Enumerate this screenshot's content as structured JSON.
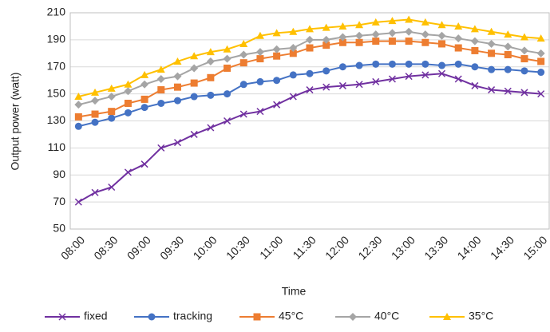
{
  "chart_data": {
    "type": "line",
    "x_label": "Time",
    "y_label": "Output  power (watt)",
    "categories": [
      "08:00",
      null,
      "08:30",
      null,
      "09:00",
      null,
      "09:30",
      null,
      "10:00",
      null,
      "10:30",
      null,
      "11:00",
      null,
      "11:30",
      null,
      "12:00",
      null,
      "12:30",
      null,
      "13:00",
      null,
      "13:30",
      null,
      "14:00",
      null,
      "14:30",
      null,
      "15:00"
    ],
    "ylim": [
      50,
      210
    ],
    "yticks": [
      50,
      70,
      90,
      110,
      130,
      150,
      170,
      190,
      210
    ],
    "grid": true,
    "series": [
      {
        "name": "fixed",
        "color": "#7030a0",
        "marker": "x",
        "values": [
          70,
          77,
          81,
          92,
          98,
          110,
          114,
          120,
          125,
          130,
          135,
          137,
          142,
          148,
          153,
          155,
          156,
          157,
          159,
          161,
          163,
          164,
          165,
          161,
          156,
          153,
          152,
          151,
          150
        ]
      },
      {
        "name": "tracking",
        "color": "#4472c4",
        "marker": "circle",
        "values": [
          126,
          129,
          132,
          136,
          140,
          143,
          145,
          148,
          149,
          150,
          157,
          159,
          160,
          164,
          165,
          167,
          170,
          171,
          172,
          172,
          172,
          172,
          171,
          172,
          170,
          168,
          168,
          167,
          166
        ]
      },
      {
        "name": "45°C",
        "color": "#ed7d31",
        "marker": "square",
        "values": [
          133,
          135,
          137,
          143,
          146,
          153,
          155,
          158,
          162,
          169,
          173,
          176,
          178,
          180,
          184,
          186,
          188,
          188,
          189,
          189,
          189,
          188,
          187,
          184,
          182,
          180,
          179,
          176,
          174
        ]
      },
      {
        "name": "40°C",
        "color": "#a5a5a5",
        "marker": "diamond",
        "values": [
          142,
          145,
          148,
          152,
          157,
          161,
          163,
          169,
          174,
          176,
          179,
          181,
          183,
          184,
          190,
          190,
          192,
          193,
          194,
          195,
          196,
          194,
          193,
          191,
          189,
          187,
          185,
          182,
          180
        ]
      },
      {
        "name": "35°C",
        "color": "#ffc000",
        "marker": "triangle",
        "values": [
          148,
          151,
          154,
          157,
          164,
          168,
          174,
          178,
          181,
          183,
          187,
          193,
          195,
          196,
          198,
          199,
          200,
          201,
          203,
          204,
          205,
          203,
          201,
          200,
          198,
          196,
          194,
          192,
          191
        ]
      }
    ]
  }
}
